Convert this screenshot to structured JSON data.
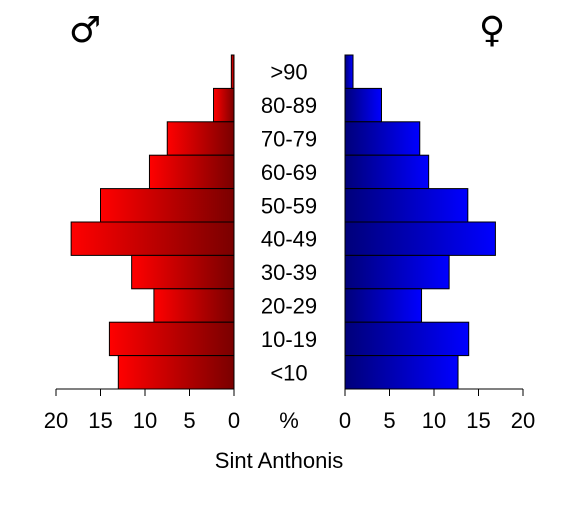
{
  "chart_data": {
    "type": "bar",
    "title": "Sint Anthonis",
    "unit_label": "%",
    "male_symbol": "♂",
    "female_symbol": "♀",
    "categories": [
      ">90",
      "80-89",
      "70-79",
      "60-69",
      "50-59",
      "40-49",
      "30-39",
      "20-29",
      "10-19",
      "<10"
    ],
    "series": [
      {
        "side": "male",
        "color": "#ff0000",
        "values": [
          0.3,
          2.3,
          7.5,
          9.5,
          15.0,
          18.3,
          11.5,
          9.0,
          14.0,
          13.0
        ]
      },
      {
        "side": "female",
        "color": "#0000ff",
        "values": [
          0.9,
          4.1,
          8.4,
          9.4,
          13.8,
          16.9,
          11.7,
          8.6,
          13.9,
          12.7
        ]
      }
    ],
    "xlim": [
      0,
      20
    ],
    "x_ticks": [
      "20",
      "15",
      "10",
      "5",
      "0",
      "0",
      "5",
      "10",
      "15",
      "20"
    ]
  }
}
